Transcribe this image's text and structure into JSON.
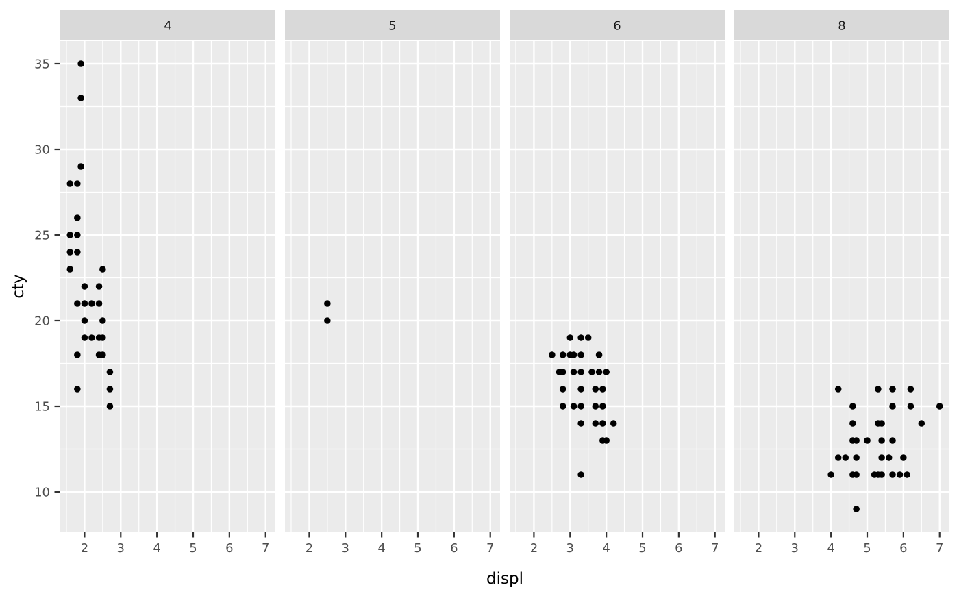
{
  "chart_data": {
    "type": "scatter",
    "title": "",
    "xlabel": "displ",
    "ylabel": "cty",
    "facet_variable": "cyl",
    "legend": "none",
    "grid": "on",
    "x_ticks": [
      2,
      3,
      4,
      5,
      6,
      7
    ],
    "y_ticks": [
      10,
      15,
      20,
      25,
      30,
      35
    ],
    "x_minor": [
      1.5,
      2.5,
      3.5,
      4.5,
      5.5,
      6.5
    ],
    "y_minor": [
      12.5,
      17.5,
      22.5,
      27.5,
      32.5
    ],
    "xlim": [
      1.33,
      7.27
    ],
    "ylim": [
      7.68,
      36.32
    ],
    "facets": [
      {
        "label": "4",
        "points": [
          [
            1.9,
            35
          ],
          [
            1.9,
            33
          ],
          [
            1.9,
            29
          ],
          [
            1.6,
            28
          ],
          [
            1.8,
            28
          ],
          [
            1.8,
            26
          ],
          [
            1.6,
            25
          ],
          [
            1.8,
            25
          ],
          [
            1.6,
            24
          ],
          [
            1.8,
            24
          ],
          [
            1.6,
            23
          ],
          [
            2.5,
            23
          ],
          [
            2.0,
            22
          ],
          [
            2.4,
            22
          ],
          [
            1.8,
            21
          ],
          [
            2.0,
            21
          ],
          [
            2.2,
            21
          ],
          [
            2.4,
            21
          ],
          [
            2.0,
            20
          ],
          [
            2.5,
            20
          ],
          [
            2.0,
            19
          ],
          [
            2.2,
            19
          ],
          [
            2.4,
            19
          ],
          [
            2.5,
            19
          ],
          [
            1.8,
            18
          ],
          [
            2.4,
            18
          ],
          [
            2.5,
            18
          ],
          [
            2.7,
            17
          ],
          [
            1.8,
            16
          ],
          [
            2.7,
            16
          ],
          [
            2.7,
            15
          ]
        ]
      },
      {
        "label": "5",
        "points": [
          [
            2.5,
            21
          ],
          [
            2.5,
            20
          ]
        ]
      },
      {
        "label": "6",
        "points": [
          [
            3.0,
            19
          ],
          [
            3.3,
            19
          ],
          [
            3.5,
            19
          ],
          [
            2.5,
            18
          ],
          [
            2.8,
            18
          ],
          [
            3.0,
            18
          ],
          [
            3.1,
            18
          ],
          [
            3.3,
            18
          ],
          [
            3.8,
            18
          ],
          [
            2.7,
            17
          ],
          [
            2.8,
            17
          ],
          [
            3.1,
            17
          ],
          [
            3.3,
            17
          ],
          [
            3.6,
            17
          ],
          [
            3.8,
            17
          ],
          [
            4.0,
            17
          ],
          [
            2.8,
            16
          ],
          [
            3.3,
            16
          ],
          [
            3.7,
            16
          ],
          [
            3.9,
            16
          ],
          [
            2.8,
            15
          ],
          [
            3.1,
            15
          ],
          [
            3.3,
            15
          ],
          [
            3.7,
            15
          ],
          [
            3.9,
            15
          ],
          [
            3.3,
            14
          ],
          [
            3.7,
            14
          ],
          [
            3.9,
            14
          ],
          [
            4.2,
            14
          ],
          [
            3.9,
            13
          ],
          [
            4.0,
            13
          ],
          [
            3.3,
            11
          ]
        ]
      },
      {
        "label": "8",
        "points": [
          [
            4.2,
            16
          ],
          [
            5.3,
            16
          ],
          [
            5.7,
            16
          ],
          [
            6.2,
            16
          ],
          [
            4.6,
            15
          ],
          [
            5.7,
            15
          ],
          [
            6.2,
            15
          ],
          [
            7.0,
            15
          ],
          [
            4.6,
            14
          ],
          [
            5.3,
            14
          ],
          [
            5.4,
            14
          ],
          [
            6.5,
            14
          ],
          [
            4.6,
            13
          ],
          [
            4.7,
            13
          ],
          [
            5.0,
            13
          ],
          [
            5.4,
            13
          ],
          [
            5.7,
            13
          ],
          [
            4.2,
            12
          ],
          [
            4.4,
            12
          ],
          [
            4.7,
            12
          ],
          [
            5.4,
            12
          ],
          [
            5.6,
            12
          ],
          [
            6.0,
            12
          ],
          [
            4.0,
            11
          ],
          [
            4.6,
            11
          ],
          [
            4.7,
            11
          ],
          [
            5.2,
            11
          ],
          [
            5.3,
            11
          ],
          [
            5.4,
            11
          ],
          [
            5.7,
            11
          ],
          [
            5.9,
            11
          ],
          [
            6.1,
            11
          ],
          [
            4.7,
            9
          ]
        ]
      }
    ]
  },
  "style": {
    "background": "#FFFFFF",
    "panel_bg": "#EBEBEB",
    "strip_bg": "#D9D9D9",
    "grid_color": "#FFFFFF",
    "point_color": "#000000",
    "tick_mark_color": "#333333",
    "tick_label_color": "#4D4D4D",
    "strip_label_color": "#1A1A1A",
    "axis_title_color": "#000000"
  }
}
